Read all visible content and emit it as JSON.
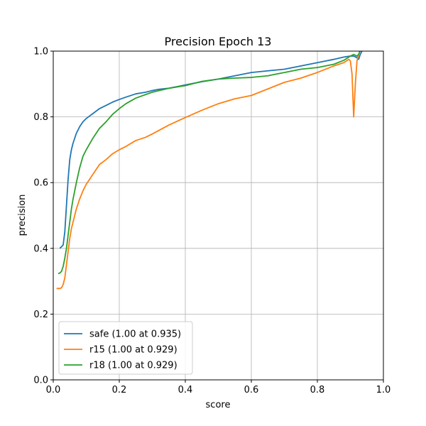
{
  "chart_data": {
    "type": "line",
    "title": "Precision Epoch 13",
    "xlabel": "score",
    "ylabel": "precision",
    "xlim": [
      0,
      1
    ],
    "ylim": [
      0,
      1
    ],
    "xticks": [
      "0.0",
      "0.2",
      "0.4",
      "0.6",
      "0.8",
      "1.0"
    ],
    "yticks": [
      "0.0",
      "0.2",
      "0.4",
      "0.6",
      "0.8",
      "1.0"
    ],
    "grid": true,
    "legend_position": "lower-left",
    "series": [
      {
        "name": "safe (1.00 at 0.935)",
        "color": "#1f77b4",
        "x": [
          0.02,
          0.03,
          0.035,
          0.04,
          0.045,
          0.05,
          0.055,
          0.06,
          0.07,
          0.08,
          0.09,
          0.1,
          0.12,
          0.14,
          0.16,
          0.18,
          0.2,
          0.22,
          0.25,
          0.28,
          0.3,
          0.32,
          0.35,
          0.4,
          0.45,
          0.5,
          0.55,
          0.6,
          0.65,
          0.7,
          0.75,
          0.8,
          0.85,
          0.88,
          0.9,
          0.91,
          0.92,
          0.925,
          0.93,
          0.935
        ],
        "y": [
          0.4,
          0.41,
          0.45,
          0.53,
          0.61,
          0.67,
          0.7,
          0.72,
          0.75,
          0.77,
          0.785,
          0.795,
          0.81,
          0.825,
          0.835,
          0.845,
          0.853,
          0.86,
          0.87,
          0.875,
          0.88,
          0.884,
          0.887,
          0.897,
          0.907,
          0.915,
          0.925,
          0.935,
          0.94,
          0.945,
          0.955,
          0.965,
          0.975,
          0.982,
          0.985,
          0.985,
          0.98,
          0.975,
          0.99,
          1.0
        ]
      },
      {
        "name": "r15 (1.00 at 0.929)",
        "color": "#ff7f0e",
        "x": [
          0.01,
          0.02,
          0.025,
          0.03,
          0.035,
          0.04,
          0.045,
          0.05,
          0.055,
          0.06,
          0.07,
          0.08,
          0.09,
          0.1,
          0.12,
          0.14,
          0.16,
          0.18,
          0.2,
          0.22,
          0.25,
          0.28,
          0.3,
          0.35,
          0.4,
          0.45,
          0.5,
          0.55,
          0.6,
          0.65,
          0.7,
          0.75,
          0.8,
          0.85,
          0.88,
          0.895,
          0.9,
          0.905,
          0.91,
          0.915,
          0.92,
          0.925,
          0.929
        ],
        "y": [
          0.278,
          0.278,
          0.28,
          0.29,
          0.31,
          0.35,
          0.39,
          0.43,
          0.46,
          0.48,
          0.52,
          0.55,
          0.575,
          0.595,
          0.625,
          0.655,
          0.67,
          0.688,
          0.7,
          0.71,
          0.728,
          0.738,
          0.748,
          0.775,
          0.798,
          0.82,
          0.84,
          0.855,
          0.865,
          0.885,
          0.905,
          0.918,
          0.935,
          0.955,
          0.965,
          0.975,
          0.97,
          0.93,
          0.8,
          0.9,
          0.97,
          0.99,
          1.0
        ]
      },
      {
        "name": "r18 (1.00 at 0.929)",
        "color": "#2ca02c",
        "x": [
          0.015,
          0.02,
          0.025,
          0.03,
          0.035,
          0.04,
          0.045,
          0.05,
          0.055,
          0.06,
          0.07,
          0.08,
          0.09,
          0.1,
          0.12,
          0.14,
          0.16,
          0.18,
          0.2,
          0.22,
          0.25,
          0.28,
          0.3,
          0.35,
          0.4,
          0.45,
          0.5,
          0.55,
          0.6,
          0.65,
          0.7,
          0.75,
          0.8,
          0.85,
          0.88,
          0.9,
          0.91,
          0.92,
          0.925,
          0.929
        ],
        "y": [
          0.323,
          0.325,
          0.33,
          0.345,
          0.37,
          0.4,
          0.44,
          0.48,
          0.52,
          0.55,
          0.6,
          0.645,
          0.68,
          0.7,
          0.735,
          0.765,
          0.785,
          0.808,
          0.825,
          0.84,
          0.857,
          0.868,
          0.875,
          0.887,
          0.895,
          0.908,
          0.915,
          0.918,
          0.92,
          0.925,
          0.935,
          0.945,
          0.95,
          0.96,
          0.972,
          0.985,
          0.99,
          0.985,
          0.99,
          1.0
        ]
      }
    ]
  }
}
